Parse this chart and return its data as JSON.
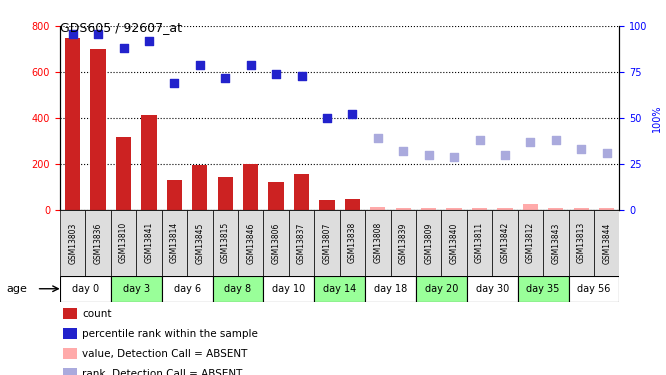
{
  "title": "GDS605 / 92607_at",
  "samples": [
    "GSM13803",
    "GSM13836",
    "GSM13810",
    "GSM13841",
    "GSM13814",
    "GSM13845",
    "GSM13815",
    "GSM13846",
    "GSM13806",
    "GSM13837",
    "GSM13807",
    "GSM13838",
    "GSM13808",
    "GSM13839",
    "GSM13809",
    "GSM13840",
    "GSM13811",
    "GSM13842",
    "GSM13812",
    "GSM13843",
    "GSM13813",
    "GSM13844"
  ],
  "bar_values": [
    750,
    700,
    320,
    415,
    130,
    195,
    145,
    200,
    120,
    155,
    45,
    50,
    15,
    10,
    10,
    10,
    10,
    10,
    25,
    10,
    10,
    10
  ],
  "bar_absent": [
    false,
    false,
    false,
    false,
    false,
    false,
    false,
    false,
    false,
    false,
    false,
    false,
    true,
    true,
    true,
    true,
    true,
    true,
    true,
    true,
    true,
    true
  ],
  "rank_values": [
    96,
    96,
    88,
    92,
    69,
    79,
    72,
    79,
    74,
    73,
    50,
    52,
    39,
    32,
    30,
    29,
    38,
    30,
    37,
    38,
    33,
    31
  ],
  "rank_absent": [
    false,
    false,
    false,
    false,
    false,
    false,
    false,
    false,
    false,
    false,
    false,
    false,
    true,
    true,
    true,
    true,
    true,
    true,
    true,
    true,
    true,
    true
  ],
  "age_groups": [
    {
      "label": "day 0",
      "start": 0,
      "end": 2,
      "color": "#ffffff"
    },
    {
      "label": "day 3",
      "start": 2,
      "end": 4,
      "color": "#99ff99"
    },
    {
      "label": "day 6",
      "start": 4,
      "end": 6,
      "color": "#ffffff"
    },
    {
      "label": "day 8",
      "start": 6,
      "end": 8,
      "color": "#99ff99"
    },
    {
      "label": "day 10",
      "start": 8,
      "end": 10,
      "color": "#ffffff"
    },
    {
      "label": "day 14",
      "start": 10,
      "end": 12,
      "color": "#99ff99"
    },
    {
      "label": "day 18",
      "start": 12,
      "end": 14,
      "color": "#ffffff"
    },
    {
      "label": "day 20",
      "start": 14,
      "end": 16,
      "color": "#99ff99"
    },
    {
      "label": "day 30",
      "start": 16,
      "end": 18,
      "color": "#ffffff"
    },
    {
      "label": "day 35",
      "start": 18,
      "end": 20,
      "color": "#99ff99"
    },
    {
      "label": "day 56",
      "start": 20,
      "end": 22,
      "color": "#ffffff"
    }
  ],
  "ylim_left": [
    0,
    800
  ],
  "ylim_right": [
    0,
    100
  ],
  "yticks_left": [
    0,
    200,
    400,
    600,
    800
  ],
  "yticks_right": [
    0,
    25,
    50,
    75,
    100
  ],
  "bar_color_present": "#cc2222",
  "bar_color_absent": "#ffaaaa",
  "rank_color_present": "#2222cc",
  "rank_color_absent": "#aaaadd",
  "legend_items": [
    {
      "color": "#cc2222",
      "label": "count"
    },
    {
      "color": "#2222cc",
      "label": "percentile rank within the sample"
    },
    {
      "color": "#ffaaaa",
      "label": "value, Detection Call = ABSENT"
    },
    {
      "color": "#aaaadd",
      "label": "rank, Detection Call = ABSENT"
    }
  ]
}
